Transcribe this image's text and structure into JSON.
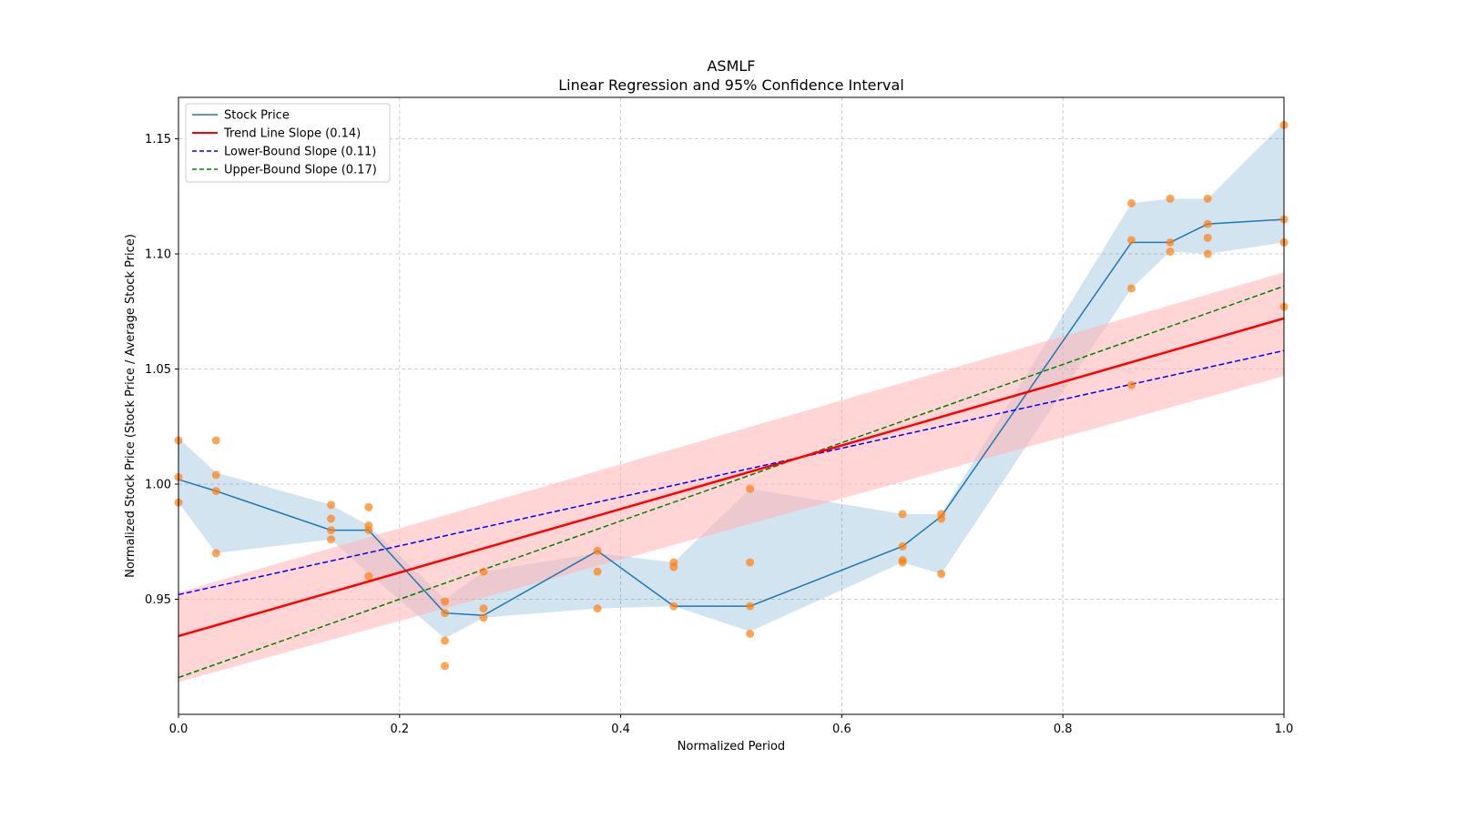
{
  "chart_data": {
    "type": "line",
    "title": "ASMLF",
    "subtitle": "Linear Regression and 95% Confidence Interval",
    "xlabel": "Normalized Period",
    "ylabel": "Normalized Stock Price (Stock Price / Average Stock Price)",
    "xlim": [
      0.0,
      1.0
    ],
    "ylim": [
      0.9,
      1.168
    ],
    "xticks": [
      0.0,
      0.2,
      0.4,
      0.6,
      0.8,
      1.0
    ],
    "xtick_labels": [
      "0.0",
      "0.2",
      "0.4",
      "0.6",
      "0.8",
      "1.0"
    ],
    "yticks": [
      0.95,
      1.0,
      1.05,
      1.1,
      1.15
    ],
    "ytick_labels": [
      "0.95",
      "1.00",
      "1.05",
      "1.10",
      "1.15"
    ],
    "grid": true,
    "legend_position": "top-left",
    "colors": {
      "stock": "#1f77b4",
      "stock_band": "#1f77b4",
      "scatter": "#ff7f0e",
      "trend": "#ff0000",
      "trend_band": "#ffb3b3",
      "lower": "#0000ff",
      "upper": "#008000",
      "grid": "#b0b0b0"
    },
    "legend": [
      {
        "label": "Stock Price",
        "color": "#1f77b4",
        "style": "solid"
      },
      {
        "label": "Trend Line Slope (0.14)",
        "color": "#ff0000",
        "style": "solid"
      },
      {
        "label": "Lower-Bound Slope (0.11)",
        "color": "#0000ff",
        "style": "dashed"
      },
      {
        "label": "Upper-Bound Slope (0.17)",
        "color": "#008000",
        "style": "dashed"
      }
    ],
    "stock_price": {
      "x": [
        0.0,
        0.034,
        0.138,
        0.172,
        0.241,
        0.276,
        0.379,
        0.448,
        0.517,
        0.655,
        0.69,
        0.862,
        0.897,
        0.931,
        1.0
      ],
      "y": [
        1.002,
        0.997,
        0.98,
        0.98,
        0.944,
        0.943,
        0.971,
        0.947,
        0.947,
        0.973,
        0.986,
        1.105,
        1.105,
        1.113,
        1.115
      ],
      "band_upper": [
        1.02,
        1.005,
        0.991,
        0.982,
        0.95,
        0.962,
        0.97,
        0.966,
        0.998,
        0.987,
        0.987,
        1.122,
        1.124,
        1.124,
        1.157
      ],
      "band_lower": [
        0.992,
        0.97,
        0.976,
        0.961,
        0.933,
        0.942,
        0.946,
        0.947,
        0.936,
        0.966,
        0.961,
        1.085,
        1.101,
        1.1,
        1.105
      ]
    },
    "scatter_points": {
      "x": [
        0.0,
        0.0,
        0.0,
        0.034,
        0.034,
        0.034,
        0.034,
        0.138,
        0.138,
        0.138,
        0.138,
        0.172,
        0.172,
        0.172,
        0.172,
        0.241,
        0.241,
        0.241,
        0.241,
        0.276,
        0.276,
        0.276,
        0.379,
        0.379,
        0.379,
        0.448,
        0.448,
        0.448,
        0.517,
        0.517,
        0.517,
        0.517,
        0.655,
        0.655,
        0.655,
        0.655,
        0.69,
        0.69,
        0.69,
        0.862,
        0.862,
        0.862,
        0.862,
        0.897,
        0.897,
        0.897,
        0.931,
        0.931,
        0.931,
        0.931,
        1.0,
        1.0,
        1.0,
        1.0
      ],
      "y": [
        1.019,
        1.003,
        0.992,
        1.019,
        1.004,
        0.997,
        0.97,
        0.991,
        0.985,
        0.98,
        0.976,
        0.99,
        0.982,
        0.98,
        0.96,
        0.949,
        0.944,
        0.932,
        0.921,
        0.962,
        0.946,
        0.942,
        0.971,
        0.962,
        0.946,
        0.966,
        0.964,
        0.947,
        0.998,
        0.966,
        0.947,
        0.935,
        0.987,
        0.973,
        0.967,
        0.966,
        0.987,
        0.985,
        0.961,
        1.122,
        1.106,
        1.085,
        1.043,
        1.124,
        1.105,
        1.101,
        1.124,
        1.113,
        1.107,
        1.1,
        1.156,
        1.115,
        1.105,
        1.077
      ]
    },
    "trend_line": {
      "x": [
        0.0,
        1.0
      ],
      "y": [
        0.934,
        1.072
      ],
      "band_upper": [
        0.953,
        1.092
      ],
      "band_lower": [
        0.914,
        1.047
      ]
    },
    "lower_bound_line": {
      "x": [
        0.0,
        1.0
      ],
      "y": [
        0.952,
        1.058
      ]
    },
    "upper_bound_line": {
      "x": [
        0.0,
        1.0
      ],
      "y": [
        0.916,
        1.086
      ]
    }
  }
}
